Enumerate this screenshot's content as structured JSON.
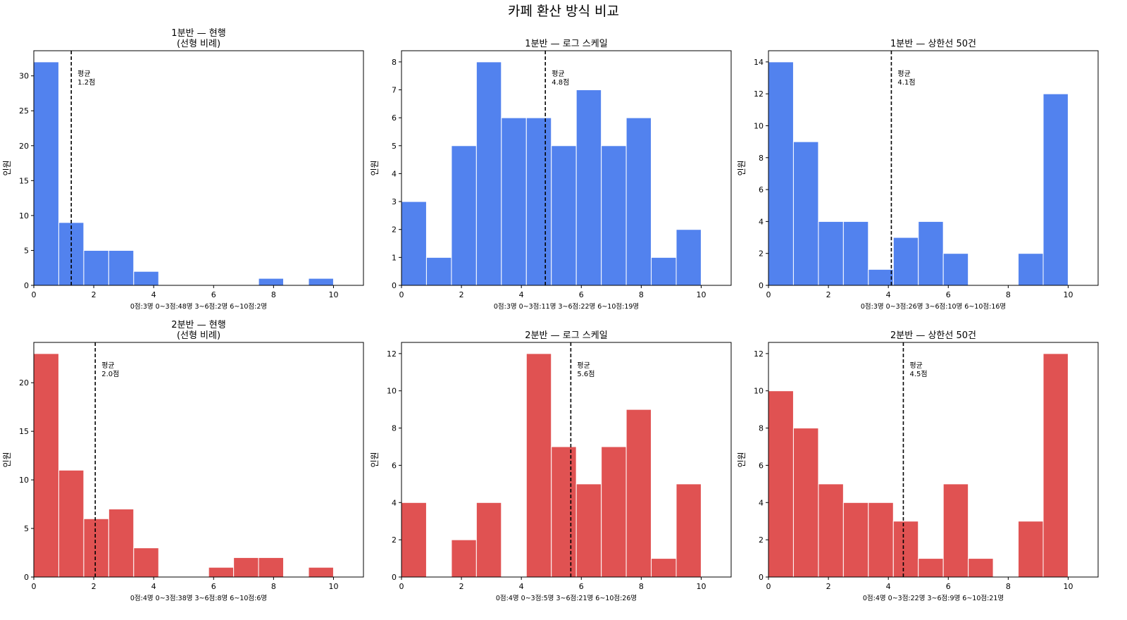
{
  "figure": {
    "title": "카페 환산 방식 비교"
  },
  "chart_data": [
    {
      "type": "bar",
      "row": 0,
      "col": 0,
      "title_lines": [
        "1분반 — 현행",
        "(선형 비례)"
      ],
      "ylabel": "인원",
      "xlabel": "0점:3명   0~3점:48명   3~6점:2명   6~10점:2명",
      "xlim": [
        0,
        11
      ],
      "ylim": [
        0,
        33.6
      ],
      "xticks": [
        0,
        2,
        4,
        6,
        8,
        10
      ],
      "yticks": [
        0,
        5,
        10,
        15,
        20,
        25,
        30
      ],
      "bin_edges": [
        0,
        0.833,
        1.667,
        2.5,
        3.333,
        4.167,
        5.0,
        5.833,
        6.667,
        7.5,
        8.333,
        9.167,
        10.0
      ],
      "values": [
        32,
        9,
        5,
        5,
        2,
        0,
        0,
        0,
        0,
        1,
        0,
        1
      ],
      "mean": 1.25,
      "mean_label": [
        "평균",
        "1.2점"
      ],
      "color": "#5282ee"
    },
    {
      "type": "bar",
      "row": 0,
      "col": 1,
      "title_lines": [
        "1분반 — 로그 스케일"
      ],
      "ylabel": "인원",
      "xlabel": "0점:3명   0~3점:11명   3~6점:22명   6~10점:19명",
      "xlim": [
        0,
        11
      ],
      "ylim": [
        0,
        8.4
      ],
      "xticks": [
        0,
        2,
        4,
        6,
        8,
        10
      ],
      "yticks": [
        0,
        1,
        2,
        3,
        4,
        5,
        6,
        7,
        8
      ],
      "bin_edges": [
        0,
        0.833,
        1.667,
        2.5,
        3.333,
        4.167,
        5.0,
        5.833,
        6.667,
        7.5,
        8.333,
        9.167,
        10.0
      ],
      "values": [
        3,
        1,
        5,
        8,
        6,
        6,
        5,
        7,
        5,
        6,
        1,
        2
      ],
      "mean": 4.8,
      "mean_label": [
        "평균",
        "4.8점"
      ],
      "color": "#5282ee"
    },
    {
      "type": "bar",
      "row": 0,
      "col": 2,
      "title_lines": [
        "1분반 — 상한선 50건"
      ],
      "ylabel": "인원",
      "xlabel": "0점:3명   0~3점:26명   3~6점:10명   6~10점:16명",
      "xlim": [
        0,
        11
      ],
      "ylim": [
        0,
        14.7
      ],
      "xticks": [
        0,
        2,
        4,
        6,
        8,
        10
      ],
      "yticks": [
        0,
        2,
        4,
        6,
        8,
        10,
        12,
        14
      ],
      "bin_edges": [
        0,
        0.833,
        1.667,
        2.5,
        3.333,
        4.167,
        5.0,
        5.833,
        6.667,
        7.5,
        8.333,
        9.167,
        10.0
      ],
      "values": [
        14,
        9,
        4,
        4,
        1,
        3,
        4,
        2,
        0,
        0,
        2,
        12
      ],
      "mean": 4.1,
      "mean_label": [
        "평균",
        "4.1점"
      ],
      "color": "#5282ee"
    },
    {
      "type": "bar",
      "row": 1,
      "col": 0,
      "title_lines": [
        "2분반 — 현행",
        "(선형 비례)"
      ],
      "ylabel": "인원",
      "xlabel": "0점:4명   0~3점:38명   3~6점:8명   6~10점:6명",
      "xlim": [
        0,
        11
      ],
      "ylim": [
        0,
        24.15
      ],
      "xticks": [
        0,
        2,
        4,
        6,
        8,
        10
      ],
      "yticks": [
        0,
        5,
        10,
        15,
        20
      ],
      "bin_edges": [
        0,
        0.833,
        1.667,
        2.5,
        3.333,
        4.167,
        5.0,
        5.833,
        6.667,
        7.5,
        8.333,
        9.167,
        10.0
      ],
      "values": [
        23,
        11,
        6,
        7,
        3,
        0,
        0,
        1,
        2,
        2,
        0,
        1
      ],
      "mean": 2.05,
      "mean_label": [
        "평균",
        "2.0점"
      ],
      "color": "#e05252"
    },
    {
      "type": "bar",
      "row": 1,
      "col": 1,
      "title_lines": [
        "2분반 — 로그 스케일"
      ],
      "ylabel": "인원",
      "xlabel": "0점:4명   0~3점:5명   3~6점:21명   6~10점:26명",
      "xlim": [
        0,
        11
      ],
      "ylim": [
        0,
        12.6
      ],
      "xticks": [
        0,
        2,
        4,
        6,
        8,
        10
      ],
      "yticks": [
        0,
        2,
        4,
        6,
        8,
        10,
        12
      ],
      "bin_edges": [
        0,
        0.833,
        1.667,
        2.5,
        3.333,
        4.167,
        5.0,
        5.833,
        6.667,
        7.5,
        8.333,
        9.167,
        10.0
      ],
      "values": [
        4,
        0,
        2,
        4,
        0,
        12,
        7,
        5,
        7,
        9,
        1,
        5
      ],
      "mean": 5.65,
      "mean_label": [
        "평균",
        "5.6점"
      ],
      "color": "#e05252"
    },
    {
      "type": "bar",
      "row": 1,
      "col": 2,
      "title_lines": [
        "2분반 — 상한선 50건"
      ],
      "ylabel": "인원",
      "xlabel": "0점:4명   0~3점:22명   3~6점:9명   6~10점:21명",
      "xlim": [
        0,
        11
      ],
      "ylim": [
        0,
        12.6
      ],
      "xticks": [
        0,
        2,
        4,
        6,
        8,
        10
      ],
      "yticks": [
        0,
        2,
        4,
        6,
        8,
        10,
        12
      ],
      "bin_edges": [
        0,
        0.833,
        1.667,
        2.5,
        3.333,
        4.167,
        5.0,
        5.833,
        6.667,
        7.5,
        8.333,
        9.167,
        10.0
      ],
      "values": [
        10,
        8,
        5,
        4,
        4,
        3,
        1,
        5,
        1,
        0,
        3,
        12
      ],
      "mean": 4.5,
      "mean_label": [
        "평균",
        "4.5점"
      ],
      "color": "#e05252"
    }
  ]
}
